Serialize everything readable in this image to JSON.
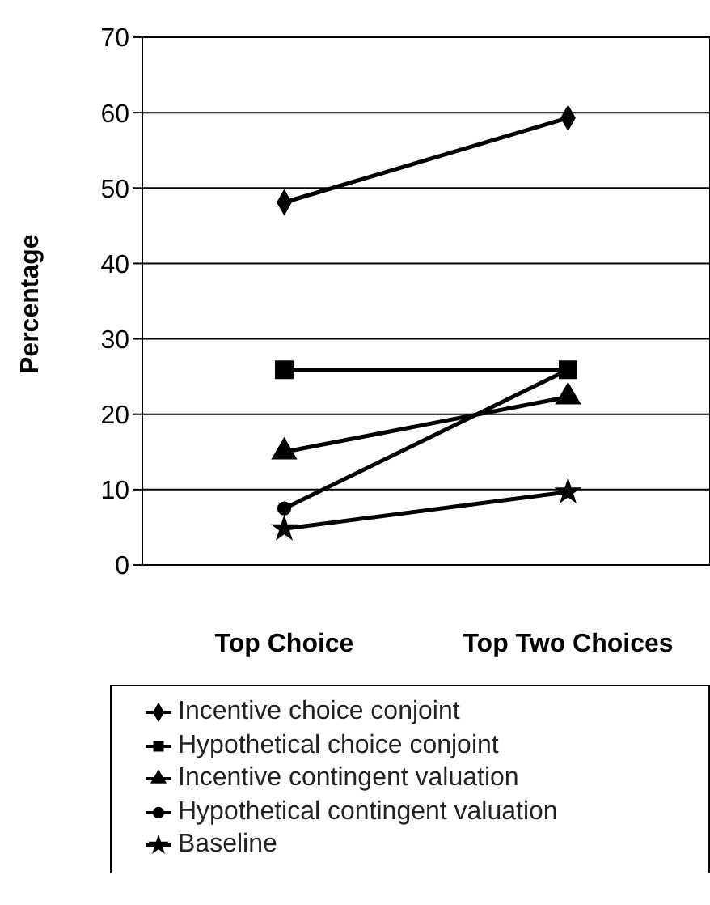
{
  "chart_data": {
    "type": "line",
    "ylabel": "Percentage",
    "categories": [
      "Top Choice",
      "Top Two Choices"
    ],
    "series": [
      {
        "name": "Incentive choice conjoint",
        "color": "#000000",
        "marker": "diamond",
        "values": [
          48.1,
          59.3
        ]
      },
      {
        "name": "Hypothetical choice conjoint",
        "color": "#000000",
        "marker": "square",
        "values": [
          25.9,
          25.9
        ]
      },
      {
        "name": "Incentive contingent valuation",
        "color": "#000000",
        "marker": "triangle",
        "values": [
          15.0,
          22.3
        ]
      },
      {
        "name": "Hypothetical contingent valuation",
        "color": "#000000",
        "marker": "circle",
        "values": [
          7.5,
          25.9
        ]
      },
      {
        "name": "Baseline",
        "color": "#000000",
        "marker": "star",
        "values": [
          4.8,
          9.7
        ]
      }
    ],
    "ylim": [
      0,
      70
    ],
    "yticks": [
      0,
      10,
      20,
      30,
      40,
      50,
      60,
      70
    ],
    "grid": "y",
    "legend": "bottom",
    "line_style": "solid"
  }
}
